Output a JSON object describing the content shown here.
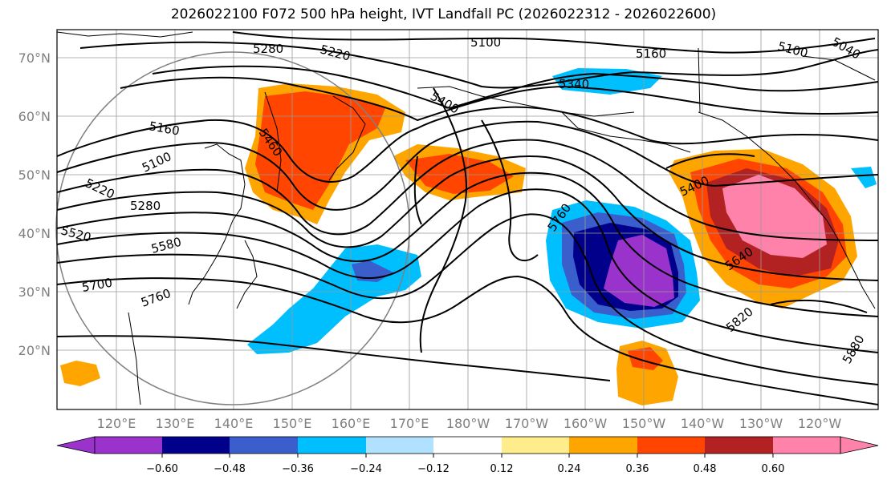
{
  "title": "2026022100 F072 500 hPa height, IVT Landfall PC (2026022312 - 2026022600)",
  "map": {
    "lat_ticks": [
      "70°N",
      "60°N",
      "50°N",
      "40°N",
      "30°N",
      "20°N"
    ],
    "lon_ticks": [
      "120°E",
      "130°E",
      "140°E",
      "150°E",
      "160°E",
      "170°E",
      "180°W",
      "170°W",
      "160°W",
      "150°W",
      "140°W",
      "130°W",
      "120°W"
    ],
    "contour_labels": [
      "5280",
      "5220",
      "5100",
      "5160",
      "5100",
      "5040",
      "5340",
      "5400",
      "5160",
      "5100",
      "5460",
      "5220",
      "5280",
      "5520",
      "5580",
      "5700",
      "5760",
      "5760",
      "5400",
      "5640",
      "5820",
      "5880"
    ]
  },
  "colorbar": {
    "colors": [
      "#9933cc",
      "#00008b",
      "#3a5fcd",
      "#00bfff",
      "#b0e2ff",
      "#ffffff",
      "#ffec8b",
      "#ffa500",
      "#ff4500",
      "#b22222",
      "#ff82ab"
    ],
    "tick_labels": [
      "−0.60",
      "−0.48",
      "−0.36",
      "−0.24",
      "−0.12",
      "0.12",
      "0.24",
      "0.36",
      "0.48",
      "0.60"
    ]
  }
}
